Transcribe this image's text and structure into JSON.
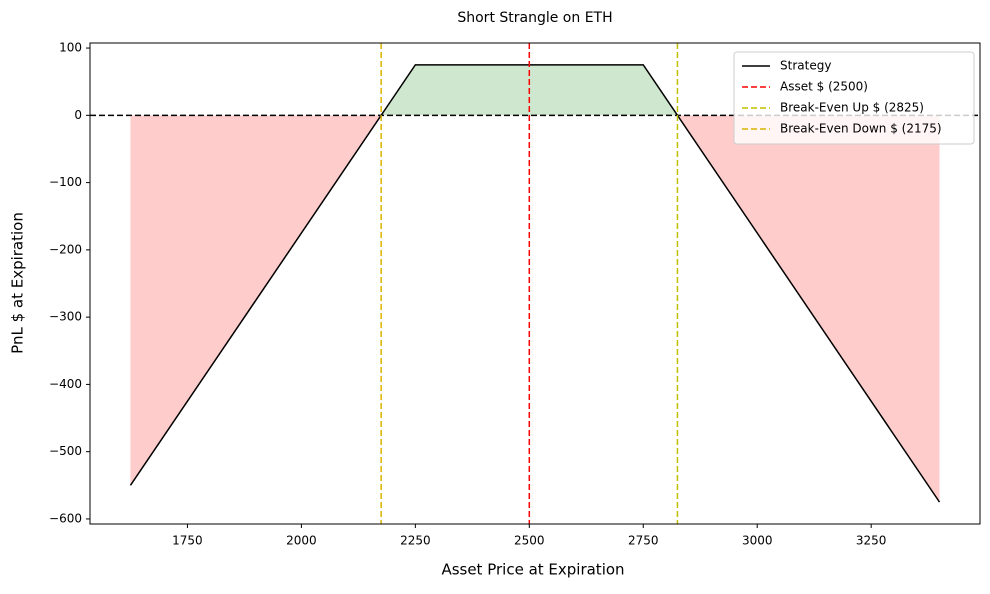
{
  "chart_data": {
    "type": "line",
    "title": "Short Strangle on ETH",
    "x_label": "Asset Price at Expiration",
    "y_label": "PnL $ at Expiration",
    "x": [
      1625,
      2175,
      2250,
      2750,
      2825,
      3400
    ],
    "series": [
      {
        "name": "Strategy",
        "color": "#000000",
        "values": [
          -550,
          0,
          75,
          75,
          0,
          -575
        ]
      }
    ],
    "fill_positive_color": "#cfe6cf",
    "fill_negative_color": "#ffcccc",
    "zero_line": {
      "y": 0,
      "color": "#000000"
    },
    "reference_lines": [
      {
        "name": "Asset $ (2500)",
        "x": 2500,
        "color": "#ff0000"
      },
      {
        "name": "Break-Even Up $ (2825)",
        "x": 2825,
        "color": "#bfbf00"
      },
      {
        "name": "Break-Even Down $ (2175)",
        "x": 2175,
        "color": "#d9b300"
      }
    ],
    "xlim": [
      1536.25,
      3488.75
    ],
    "ylim": [
      -607.5,
      107.5
    ],
    "xticks": [
      1750,
      2000,
      2250,
      2500,
      2750,
      3000,
      3250
    ],
    "yticks": [
      {
        "value": -600,
        "label": "−600"
      },
      {
        "value": -500,
        "label": "−500"
      },
      {
        "value": -400,
        "label": "−400"
      },
      {
        "value": -300,
        "label": "−300"
      },
      {
        "value": -200,
        "label": "−200"
      },
      {
        "value": -100,
        "label": "−100"
      },
      0,
      100
    ],
    "legend": "upper right"
  }
}
